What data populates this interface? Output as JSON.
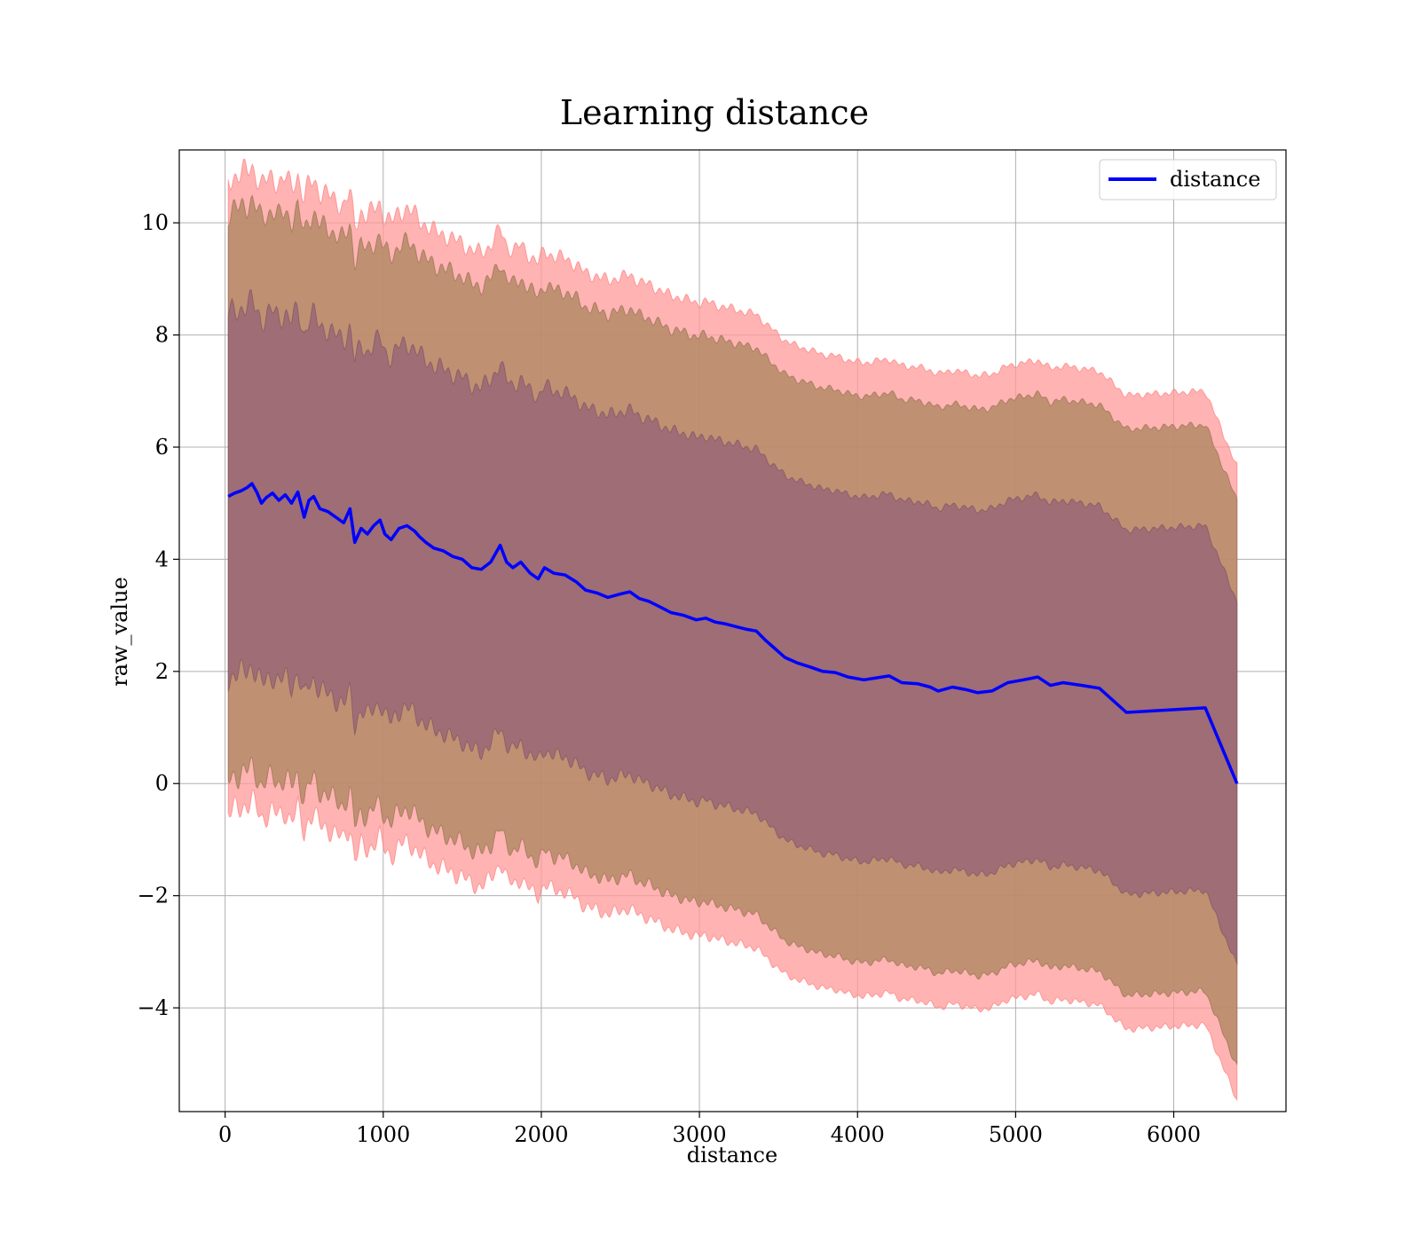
{
  "chart_data": {
    "type": "line",
    "title": "Learning distance",
    "xlabel": "distance",
    "ylabel": "raw_value",
    "xlim": [
      -290,
      6710
    ],
    "ylim": [
      -5.85,
      11.3
    ],
    "xticks": [
      0,
      1000,
      2000,
      3000,
      4000,
      5000,
      6000
    ],
    "yticks": [
      -4,
      -2,
      0,
      2,
      4,
      6,
      8,
      10
    ],
    "ytick_labels": [
      "−4",
      "−2",
      "0",
      "2",
      "4",
      "6",
      "8",
      "10"
    ],
    "grid": true,
    "legend_position": "top-right",
    "colors": {
      "line": "#0000ff",
      "band_outer": "#ff9999",
      "band_middle": "#b58a66",
      "band_inner": "#9c6b76"
    },
    "series": [
      {
        "name": "distance",
        "x": [
          20,
          60,
          100,
          140,
          170,
          200,
          230,
          260,
          300,
          340,
          380,
          420,
          460,
          500,
          530,
          560,
          600,
          650,
          700,
          750,
          790,
          820,
          860,
          900,
          940,
          980,
          1010,
          1050,
          1100,
          1150,
          1200,
          1230,
          1270,
          1320,
          1380,
          1440,
          1500,
          1560,
          1620,
          1680,
          1740,
          1780,
          1820,
          1870,
          1930,
          1980,
          2020,
          2080,
          2150,
          2220,
          2280,
          2350,
          2420,
          2500,
          2560,
          2620,
          2680,
          2750,
          2820,
          2900,
          2980,
          3040,
          3100,
          3160,
          3230,
          3300,
          3360,
          3420,
          3480,
          3540,
          3620,
          3700,
          3780,
          3860,
          3940,
          4040,
          4200,
          4280,
          4380,
          4460,
          4510,
          4600,
          4680,
          4760,
          4850,
          4950,
          5050,
          5140,
          5220,
          5300,
          5420,
          5530,
          5700,
          6200,
          6400
        ],
        "values": [
          5.12,
          5.18,
          5.22,
          5.28,
          5.35,
          5.2,
          5.0,
          5.1,
          5.18,
          5.05,
          5.15,
          5.0,
          5.2,
          4.75,
          5.05,
          5.12,
          4.9,
          4.85,
          4.75,
          4.65,
          4.9,
          4.3,
          4.55,
          4.45,
          4.6,
          4.7,
          4.45,
          4.35,
          4.55,
          4.6,
          4.5,
          4.4,
          4.3,
          4.2,
          4.15,
          4.05,
          4.0,
          3.85,
          3.82,
          3.95,
          4.25,
          3.95,
          3.85,
          3.95,
          3.75,
          3.65,
          3.85,
          3.75,
          3.72,
          3.6,
          3.45,
          3.4,
          3.32,
          3.38,
          3.42,
          3.3,
          3.25,
          3.15,
          3.05,
          3.0,
          2.92,
          2.95,
          2.88,
          2.85,
          2.8,
          2.75,
          2.72,
          2.55,
          2.4,
          2.25,
          2.15,
          2.08,
          2.0,
          1.98,
          1.9,
          1.85,
          1.92,
          1.8,
          1.78,
          1.72,
          1.65,
          1.72,
          1.68,
          1.62,
          1.65,
          1.8,
          1.85,
          1.9,
          1.75,
          1.8,
          1.75,
          1.7,
          1.27,
          1.35,
          0.0
        ]
      }
    ],
    "band_halfwidths": [
      3.25,
      5.05,
      5.65
    ]
  }
}
